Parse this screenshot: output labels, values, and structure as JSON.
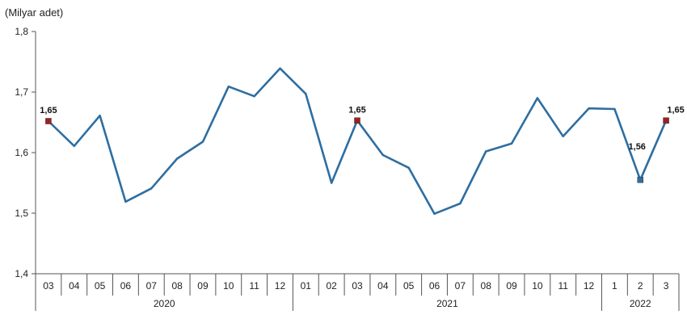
{
  "chart_data": {
    "type": "line",
    "unit_label": "(Milyar adet)",
    "ylim": [
      1.4,
      1.8
    ],
    "y_ticks": [
      "1,4",
      "1,5",
      "1,6",
      "1,7",
      "1,8"
    ],
    "y_tick_values": [
      1.4,
      1.5,
      1.6,
      1.7,
      1.8
    ],
    "x_tick_labels": [
      "03",
      "04",
      "05",
      "06",
      "07",
      "08",
      "09",
      "10",
      "11",
      "12",
      "01",
      "02",
      "03",
      "04",
      "05",
      "06",
      "07",
      "08",
      "09",
      "10",
      "11",
      "12",
      "1",
      "2",
      "3"
    ],
    "year_groups": [
      {
        "label": "2020",
        "count": 10
      },
      {
        "label": "2021",
        "count": 12
      },
      {
        "label": "2022",
        "count": 3
      }
    ],
    "series": [
      {
        "color": "#2e6ea1",
        "values": [
          1.652,
          1.611,
          1.661,
          1.519,
          1.541,
          1.59,
          1.618,
          1.709,
          1.693,
          1.739,
          1.697,
          1.55,
          1.653,
          1.596,
          1.575,
          1.499,
          1.516,
          1.602,
          1.615,
          1.69,
          1.627,
          1.673,
          1.672,
          1.555,
          1.653
        ]
      }
    ],
    "markers": [
      {
        "index": 0,
        "label": "1,65",
        "color": "#a02020",
        "label_pos": "above"
      },
      {
        "index": 12,
        "label": "1,65",
        "color": "#a02020",
        "label_pos": "above"
      },
      {
        "index": 23,
        "label": "1,56",
        "color": "#2e6ea1",
        "label_pos": "left-above"
      },
      {
        "index": 24,
        "label": "1,65",
        "color": "#a02020",
        "label_pos": "above-right"
      }
    ],
    "grid": false,
    "legend": "none"
  }
}
